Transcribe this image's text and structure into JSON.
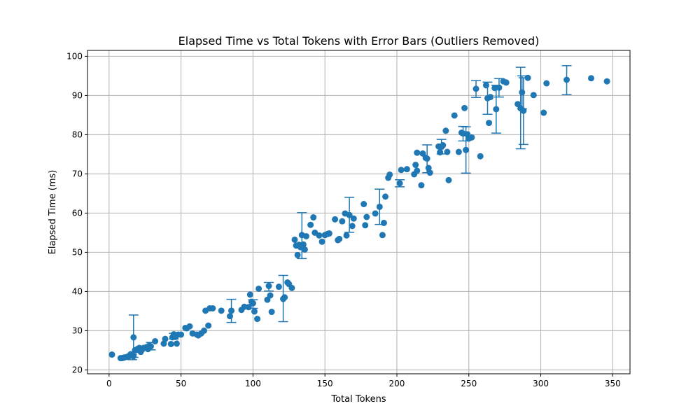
{
  "chart_data": {
    "type": "scatter",
    "title": "Elapsed Time vs Total Tokens with Error Bars (Outliers Removed)",
    "xlabel": "Total Tokens",
    "ylabel": "Elapsed Time (ms)",
    "xlim": [
      -15,
      362
    ],
    "ylim": [
      19,
      101.5
    ],
    "xticks": [
      0,
      50,
      100,
      150,
      200,
      250,
      300,
      350
    ],
    "yticks": [
      20,
      30,
      40,
      50,
      60,
      70,
      80,
      90,
      100
    ],
    "grid": true,
    "legend": "none",
    "colors": {
      "marker": "#1f77b4",
      "grid": "#b0b0b0",
      "axis": "#000000"
    },
    "points": [
      {
        "x": 2,
        "y": 23.9
      },
      {
        "x": 8,
        "y": 23.0
      },
      {
        "x": 9,
        "y": 23.0
      },
      {
        "x": 10,
        "y": 23.1
      },
      {
        "x": 11,
        "y": 23.2
      },
      {
        "x": 13,
        "y": 23.4
      },
      {
        "x": 14,
        "y": 23.5
      },
      {
        "x": 15,
        "y": 24.0
      },
      {
        "x": 16,
        "y": 23.8,
        "err": [
          22.6,
          24.0
        ]
      },
      {
        "x": 17,
        "y": 23.5
      },
      {
        "x": 17,
        "y": 28.3,
        "err": [
          23.2,
          34.0
        ]
      },
      {
        "x": 18,
        "y": 25.0
      },
      {
        "x": 19,
        "y": 25.1
      },
      {
        "x": 20,
        "y": 25.4
      },
      {
        "x": 21,
        "y": 25.6
      },
      {
        "x": 22,
        "y": 24.6
      },
      {
        "x": 23,
        "y": 25.2
      },
      {
        "x": 24,
        "y": 25.6
      },
      {
        "x": 26,
        "y": 25.8
      },
      {
        "x": 27,
        "y": 25.3
      },
      {
        "x": 28,
        "y": 26.2
      },
      {
        "x": 29,
        "y": 26.0,
        "err": [
          25.1,
          27.0
        ]
      },
      {
        "x": 32,
        "y": 27.3
      },
      {
        "x": 38,
        "y": 26.7
      },
      {
        "x": 39,
        "y": 27.9
      },
      {
        "x": 43,
        "y": 26.6
      },
      {
        "x": 44,
        "y": 28.3
      },
      {
        "x": 45,
        "y": 29.1,
        "err": [
          27.9,
          29.3
        ]
      },
      {
        "x": 46,
        "y": 28.4
      },
      {
        "x": 47,
        "y": 26.7
      },
      {
        "x": 48,
        "y": 29.0
      },
      {
        "x": 50,
        "y": 29.0
      },
      {
        "x": 53,
        "y": 30.7
      },
      {
        "x": 54,
        "y": 30.6
      },
      {
        "x": 56,
        "y": 31.1
      },
      {
        "x": 58,
        "y": 29.3
      },
      {
        "x": 61,
        "y": 29.0
      },
      {
        "x": 62,
        "y": 28.8
      },
      {
        "x": 64,
        "y": 29.3
      },
      {
        "x": 66,
        "y": 30.0
      },
      {
        "x": 67,
        "y": 35.1
      },
      {
        "x": 69,
        "y": 31.3
      },
      {
        "x": 70,
        "y": 35.7
      },
      {
        "x": 72,
        "y": 35.7
      },
      {
        "x": 78,
        "y": 35.1
      },
      {
        "x": 84,
        "y": 33.7
      },
      {
        "x": 85,
        "y": 35.1,
        "err": [
          32.1,
          38.0
        ]
      },
      {
        "x": 92,
        "y": 35.3
      },
      {
        "x": 94,
        "y": 36.1
      },
      {
        "x": 97,
        "y": 36.0
      },
      {
        "x": 98,
        "y": 39.2
      },
      {
        "x": 99,
        "y": 37.4
      },
      {
        "x": 100,
        "y": 37.0,
        "err": [
          35.7,
          37.9
        ]
      },
      {
        "x": 101,
        "y": 34.9
      },
      {
        "x": 103,
        "y": 33.0
      },
      {
        "x": 104,
        "y": 40.7
      },
      {
        "x": 110,
        "y": 37.9
      },
      {
        "x": 111,
        "y": 41.4,
        "err": [
          40.1,
          42.3
        ]
      },
      {
        "x": 112,
        "y": 39.0
      },
      {
        "x": 113,
        "y": 34.8
      },
      {
        "x": 118,
        "y": 41.2
      },
      {
        "x": 121,
        "y": 38.1,
        "err": [
          32.3,
          44.1
        ]
      },
      {
        "x": 122,
        "y": 38.5
      },
      {
        "x": 124,
        "y": 42.3
      },
      {
        "x": 125,
        "y": 41.9
      },
      {
        "x": 127,
        "y": 40.9
      },
      {
        "x": 129,
        "y": 53.2
      },
      {
        "x": 130,
        "y": 51.7
      },
      {
        "x": 131,
        "y": 49.3
      },
      {
        "x": 132,
        "y": 51.9
      },
      {
        "x": 133,
        "y": 51.3
      },
      {
        "x": 134,
        "y": 54.4,
        "err": [
          48.4,
          60.1
        ]
      },
      {
        "x": 135,
        "y": 52.0
      },
      {
        "x": 136,
        "y": 50.7
      },
      {
        "x": 137,
        "y": 54.1
      },
      {
        "x": 140,
        "y": 57.0
      },
      {
        "x": 142,
        "y": 58.9
      },
      {
        "x": 143,
        "y": 55.0
      },
      {
        "x": 146,
        "y": 54.3
      },
      {
        "x": 148,
        "y": 52.7
      },
      {
        "x": 150,
        "y": 54.4
      },
      {
        "x": 152,
        "y": 54.7
      },
      {
        "x": 153,
        "y": 54.8
      },
      {
        "x": 157,
        "y": 58.4
      },
      {
        "x": 159,
        "y": 53.1
      },
      {
        "x": 160,
        "y": 53.4
      },
      {
        "x": 162,
        "y": 57.9
      },
      {
        "x": 164,
        "y": 59.9
      },
      {
        "x": 165,
        "y": 54.3
      },
      {
        "x": 167,
        "y": 59.5,
        "err": [
          55.1,
          64.0
        ]
      },
      {
        "x": 169,
        "y": 56.7
      },
      {
        "x": 170,
        "y": 58.6
      },
      {
        "x": 177,
        "y": 62.3
      },
      {
        "x": 178,
        "y": 56.9
      },
      {
        "x": 179,
        "y": 59.0
      },
      {
        "x": 185,
        "y": 59.9
      },
      {
        "x": 188,
        "y": 61.6,
        "err": [
          57.1,
          66.1
        ]
      },
      {
        "x": 190,
        "y": 54.4
      },
      {
        "x": 191,
        "y": 57.5
      },
      {
        "x": 192,
        "y": 64.2
      },
      {
        "x": 194,
        "y": 69.0
      },
      {
        "x": 195,
        "y": 69.8
      },
      {
        "x": 202,
        "y": 67.6,
        "err": [
          66.7,
          68.5
        ]
      },
      {
        "x": 203,
        "y": 71.0
      },
      {
        "x": 207,
        "y": 71.2
      },
      {
        "x": 212,
        "y": 69.9
      },
      {
        "x": 213,
        "y": 72.3
      },
      {
        "x": 214,
        "y": 75.4
      },
      {
        "x": 214,
        "y": 70.8
      },
      {
        "x": 217,
        "y": 67.1
      },
      {
        "x": 218,
        "y": 75.2
      },
      {
        "x": 220,
        "y": 74.1
      },
      {
        "x": 221,
        "y": 73.9,
        "err": [
          70.3,
          77.4
        ]
      },
      {
        "x": 222,
        "y": 71.5
      },
      {
        "x": 223,
        "y": 70.3
      },
      {
        "x": 229,
        "y": 77.0
      },
      {
        "x": 230,
        "y": 75.5
      },
      {
        "x": 231,
        "y": 76.9,
        "err": [
          75.1,
          78.8
        ]
      },
      {
        "x": 232,
        "y": 77.3
      },
      {
        "x": 234,
        "y": 81.0
      },
      {
        "x": 235,
        "y": 75.6
      },
      {
        "x": 236,
        "y": 68.4
      },
      {
        "x": 240,
        "y": 84.9
      },
      {
        "x": 243,
        "y": 75.6
      },
      {
        "x": 245,
        "y": 80.5
      },
      {
        "x": 246,
        "y": 80.3,
        "err": [
          78.4,
          82.1
        ]
      },
      {
        "x": 247,
        "y": 86.8
      },
      {
        "x": 248,
        "y": 76.1,
        "err": [
          70.2,
          82.0
        ]
      },
      {
        "x": 249,
        "y": 80.1
      },
      {
        "x": 250,
        "y": 79.0
      },
      {
        "x": 252,
        "y": 79.3
      },
      {
        "x": 255,
        "y": 91.7,
        "err": [
          89.5,
          93.8
        ]
      },
      {
        "x": 258,
        "y": 74.5
      },
      {
        "x": 262,
        "y": 92.6
      },
      {
        "x": 263,
        "y": 89.3,
        "err": [
          85.2,
          93.4
        ]
      },
      {
        "x": 264,
        "y": 83.0
      },
      {
        "x": 265,
        "y": 89.6
      },
      {
        "x": 268,
        "y": 91.9
      },
      {
        "x": 269,
        "y": 86.5,
        "err": [
          80.4,
          92.6
        ]
      },
      {
        "x": 271,
        "y": 92.0,
        "err": [
          89.6,
          94.3
        ]
      },
      {
        "x": 274,
        "y": 93.6
      },
      {
        "x": 276,
        "y": 93.3
      },
      {
        "x": 284,
        "y": 87.8
      },
      {
        "x": 286,
        "y": 86.7,
        "err": [
          76.4,
          97.2
        ]
      },
      {
        "x": 287,
        "y": 90.8,
        "err": [
          86.6,
          95.0
        ]
      },
      {
        "x": 288,
        "y": 86.1,
        "err": [
          77.5,
          94.5
        ]
      },
      {
        "x": 291,
        "y": 94.5
      },
      {
        "x": 295,
        "y": 90.1
      },
      {
        "x": 302,
        "y": 85.6
      },
      {
        "x": 304,
        "y": 93.1
      },
      {
        "x": 318,
        "y": 94.0,
        "err": [
          90.2,
          97.6
        ]
      },
      {
        "x": 335,
        "y": 94.4
      },
      {
        "x": 346,
        "y": 93.6
      }
    ]
  }
}
